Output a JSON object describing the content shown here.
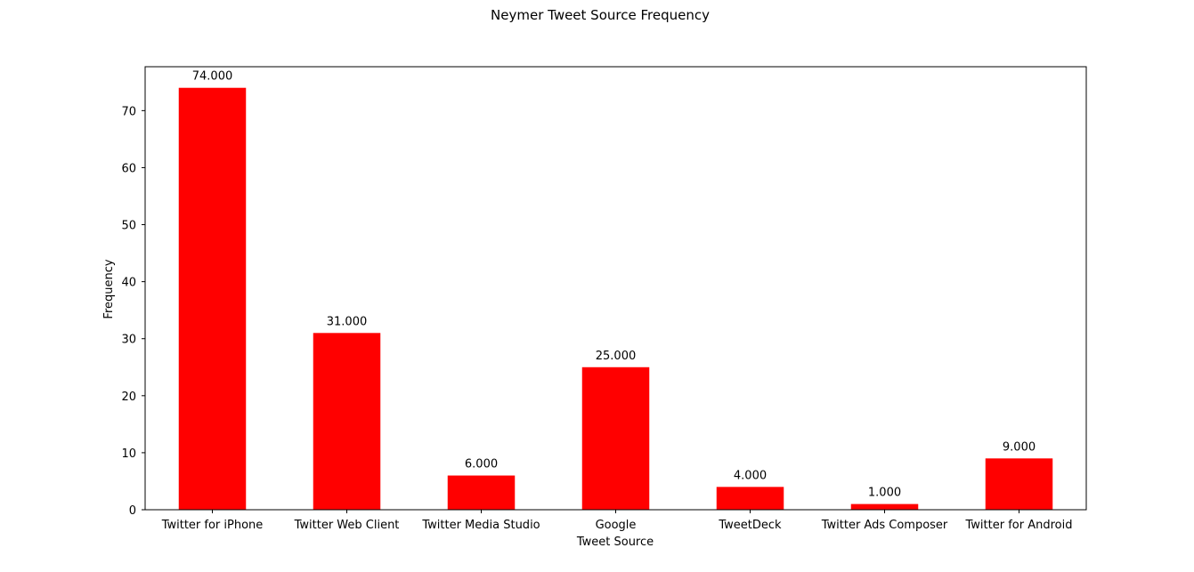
{
  "chart_data": {
    "type": "bar",
    "title": "Neymer Tweet Source Frequency",
    "xlabel": "Tweet Source",
    "ylabel": "Frequency",
    "categories": [
      "Twitter for iPhone",
      "Twitter Web Client",
      "Twitter Media Studio",
      "Google",
      "TweetDeck",
      "Twitter Ads Composer",
      "Twitter for Android"
    ],
    "values": [
      74,
      31,
      6,
      25,
      4,
      1,
      9
    ],
    "value_labels": [
      "74.000",
      "31.000",
      "6.000",
      "25.000",
      "4.000",
      "1.000",
      "9.000"
    ],
    "yticks": [
      0,
      10,
      20,
      30,
      40,
      50,
      60,
      70
    ],
    "ylim": [
      0,
      77.7
    ],
    "bar_color": "#ff0000",
    "grid": false,
    "legend": "none"
  }
}
